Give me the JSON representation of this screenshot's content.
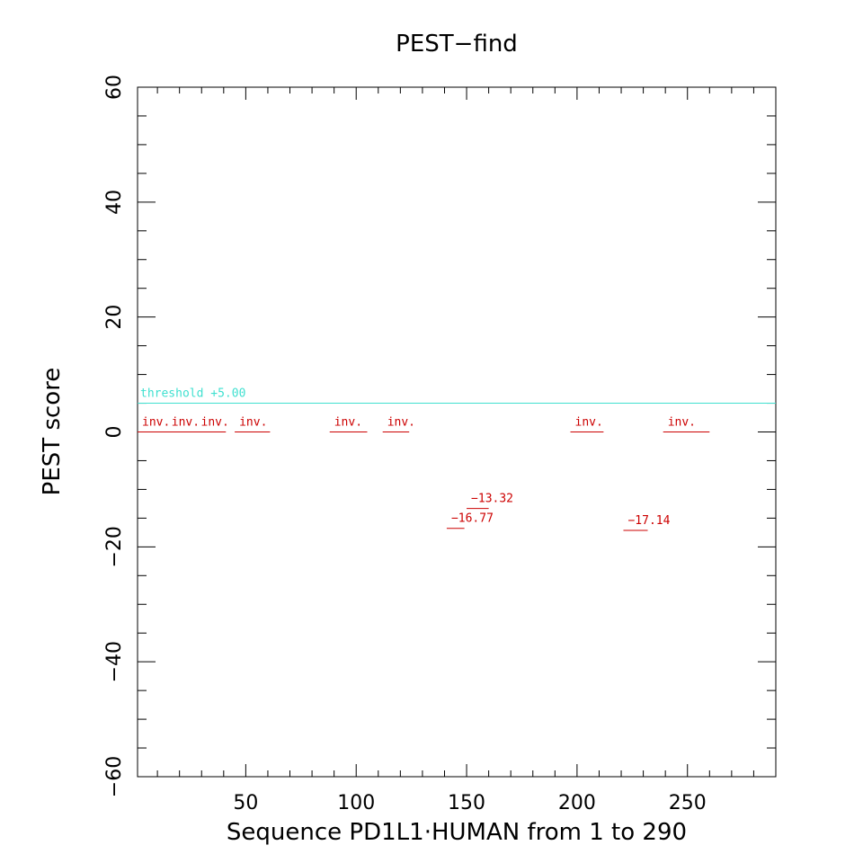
{
  "chart_data": {
    "type": "line",
    "title": "PEST−find",
    "xlabel": "Sequence PD1L1·HUMAN from 1 to 290",
    "ylabel": "PEST score",
    "xlim": [
      1,
      290
    ],
    "ylim": [
      -60,
      60
    ],
    "x_ticks": [
      50,
      100,
      150,
      200,
      250
    ],
    "x_tick_labels": [
      "50",
      "100",
      "150",
      "200",
      "250"
    ],
    "y_ticks": [
      -60,
      -40,
      -20,
      0,
      20,
      40,
      60
    ],
    "y_tick_labels": [
      "−60",
      "−40",
      "−20",
      "0",
      "20",
      "40",
      "60"
    ],
    "threshold": {
      "value": 5.0,
      "label": "threshold +5.00",
      "color": "#40e0d0"
    },
    "segment_color": "#cc0000",
    "segments": [
      {
        "x_start": 1,
        "x_end": 41,
        "y": 0,
        "labels": [
          "inv.",
          "inv.",
          "inv."
        ]
      },
      {
        "x_start": 45,
        "x_end": 61,
        "y": 0,
        "labels": [
          "inv."
        ]
      },
      {
        "x_start": 88,
        "x_end": 105,
        "y": 0,
        "labels": [
          "inv."
        ]
      },
      {
        "x_start": 112,
        "x_end": 124,
        "y": 0,
        "labels": [
          "inv."
        ]
      },
      {
        "x_start": 141,
        "x_end": 149,
        "y": -16.77,
        "labels": [
          "−16.77"
        ]
      },
      {
        "x_start": 150,
        "x_end": 160,
        "y": -13.32,
        "labels": [
          "−13.32"
        ]
      },
      {
        "x_start": 197,
        "x_end": 212,
        "y": 0,
        "labels": [
          "inv."
        ]
      },
      {
        "x_start": 221,
        "x_end": 232,
        "y": -17.14,
        "labels": [
          "−17.14"
        ]
      },
      {
        "x_start": 239,
        "x_end": 260,
        "y": 0,
        "labels": [
          "inv."
        ]
      }
    ]
  }
}
